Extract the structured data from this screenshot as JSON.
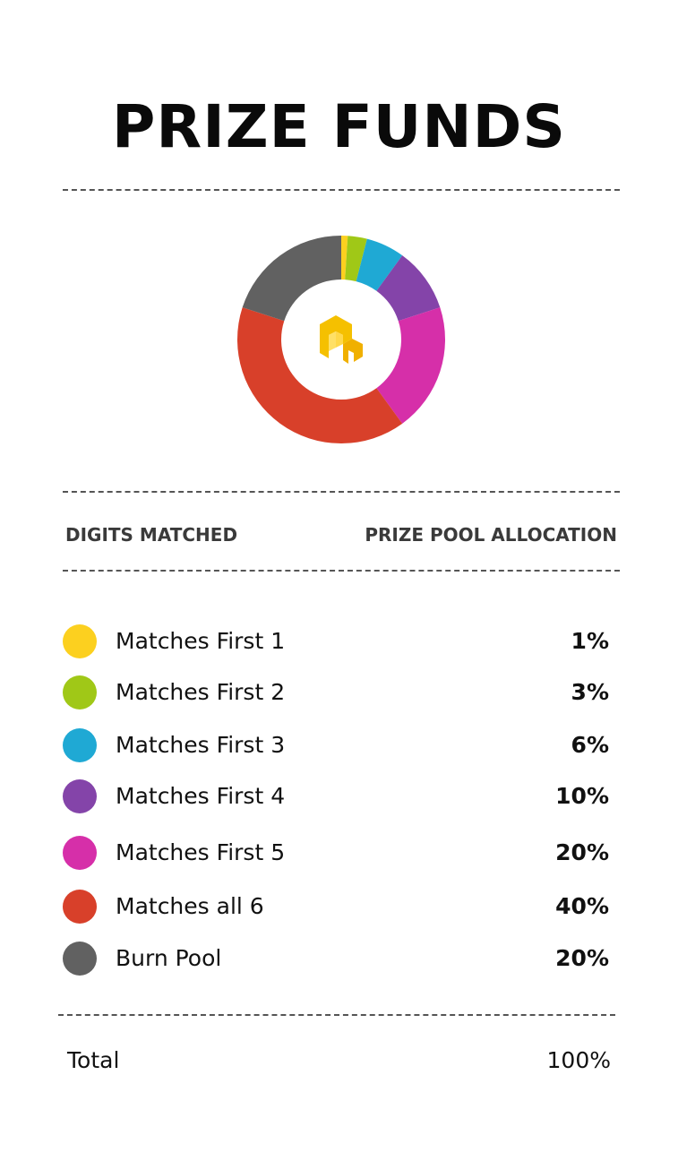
{
  "title": "PRIZE FUNDS",
  "table": {
    "left_header": "DIGITS MATCHED",
    "right_header": "PRIZE POOL ALLOCATION"
  },
  "chart_data": {
    "type": "pie",
    "style": "donut",
    "title": "PRIZE FUNDS",
    "center_icon": "yellow-logo-icon",
    "categories": [
      "Matches First 1",
      "Matches First 2",
      "Matches First 3",
      "Matches First 4",
      "Matches First 5",
      "Matches all 6",
      "Burn Pool"
    ],
    "values": [
      1,
      3,
      6,
      10,
      20,
      40,
      20
    ],
    "value_labels": [
      "1%",
      "3%",
      "6%",
      "10%",
      "20%",
      "40%",
      "20%"
    ],
    "colors": [
      "#fcd01f",
      "#a0c817",
      "#1fa9d4",
      "#8444a9",
      "#d62fa9",
      "#d8402a",
      "#616161"
    ],
    "legend_placement": "below",
    "total_label": "Total",
    "total_value": "100%"
  }
}
